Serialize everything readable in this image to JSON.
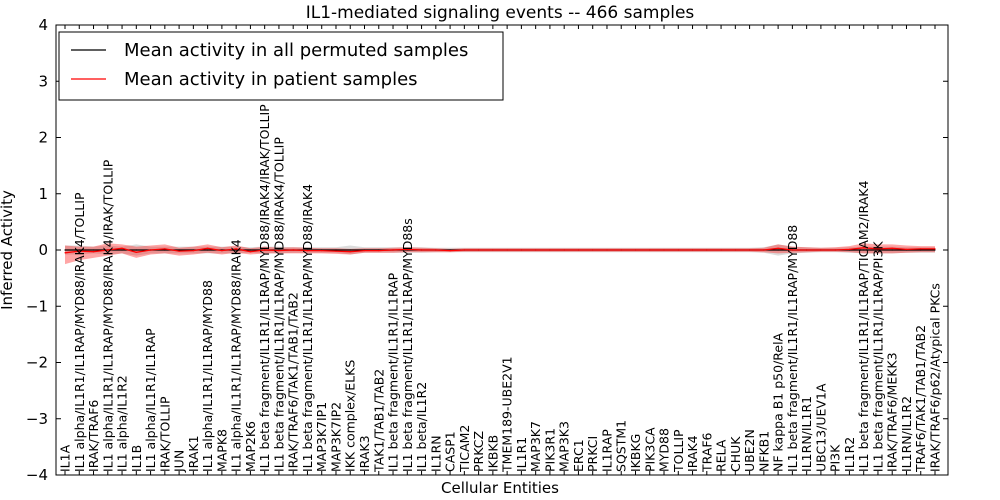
{
  "chart_data": {
    "type": "line",
    "title": "IL1-mediated signaling events -- 466 samples",
    "xlabel": "Cellular Entities",
    "ylabel": "Inferred Activity",
    "ylim": [
      -4,
      4
    ],
    "yticks": [
      -4,
      -3,
      -2,
      -1,
      0,
      1,
      2,
      3,
      4
    ],
    "ytick_labels": [
      "−4",
      "−3",
      "−2",
      "−1",
      "0",
      "1",
      "2",
      "3",
      "4"
    ],
    "legend_position": "top-left",
    "legend": [
      {
        "label": "Mean activity in all permuted samples",
        "color": "#000000"
      },
      {
        "label": "Mean activity in patient samples",
        "color": "#ff0000"
      }
    ],
    "categories": [
      "IL1A",
      "IL1 alpha/IL1R1/IL1RAP/MYD88/IRAK4/TOLLIP",
      "IRAK/TRAF6",
      "IL1 alpha/IL1R1/IL1RAP/MYD88/IRAK4/IRAK/TOLLIP",
      "IL1 alpha/IL1R2",
      "IL1B",
      "IL1 alpha/IL1R1/IL1RAP",
      "IRAK/TOLLIP",
      "JUN",
      "IRAK1",
      "IL1 alpha/IL1R1/IL1RAP/MYD88",
      "MAPK8",
      "IL1 alpha/IL1R1/IL1RAP/MYD88/IRAK4",
      "MAP2K6",
      "IL1 beta fragment/IL1R1/IL1RAP/MYD88/IRAK4/IRAK/TOLLIP",
      "IL1 beta fragment/IL1R1/IL1RAP/MYD88/IRAK4/TOLLIP",
      "IRAK/TRAF6/TAK1/TAB1/TAB2",
      "IL1 beta fragment/IL1R1/IL1RAP/MYD88/IRAK4",
      "MAP3K7IP1",
      "MAP3K7IP2",
      "IKK complex/ELKS",
      "IRAK3",
      "TAK1/TAB1/TAB2",
      "IL1 beta fragment/IL1R1/IL1RAP",
      "IL1 beta fragment/IL1R1/IL1RAP/MYD88s",
      "IL1 beta/IL1R2",
      "IL1RN",
      "CASP1",
      "TICAM2",
      "PRKCZ",
      "IKBKB",
      "TMEM189-UBE2V1",
      "IL1R1",
      "MAP3K7",
      "PIK3R1",
      "MAP3K3",
      "ERC1",
      "PRKCI",
      "IL1RAP",
      "SQSTM1",
      "IKBKG",
      "PIK3CA",
      "MYD88",
      "TOLLIP",
      "IRAK4",
      "TRAF6",
      "RELA",
      "CHUK",
      "UBE2N",
      "NFKB1",
      "NF kappa B1 p50/RelA",
      "IL1 beta fragment/IL1R1/IL1RAP/MYD88",
      "IL1RN/IL1R1",
      "UBC13/UEV1A",
      "PI3K",
      "IL1R2",
      "IL1 beta fragment/IL1R1/IL1RAP/TICAM2/IRAK4",
      "IL1 beta fragment/IL1R1/IL1RAP/PI3K",
      "IRAK/TRAF6/MEKK3",
      "IL1RN/IL1R2",
      "TRAF6/TAK1/TAB1/TAB2",
      "IRAK/TRAF6/p62/Atypical PKCs"
    ],
    "series": [
      {
        "name": "Mean activity in all permuted samples",
        "color": "#000000",
        "values": [
          0,
          0,
          0,
          0,
          0,
          0,
          0,
          0,
          0,
          0,
          0,
          0,
          0,
          0,
          0,
          0,
          0,
          0,
          0,
          0,
          0,
          0,
          0,
          0,
          0,
          0,
          0,
          0,
          0,
          0,
          0,
          0,
          0,
          0,
          0,
          0,
          0,
          0,
          0,
          0,
          0,
          0,
          0,
          0,
          0,
          0,
          0,
          0,
          0,
          0,
          0,
          0,
          0,
          0,
          0,
          0,
          0,
          0,
          0,
          0,
          0,
          0
        ],
        "band_lower": [
          -0.08,
          -0.08,
          -0.06,
          -0.08,
          -0.06,
          -0.1,
          -0.06,
          -0.06,
          -0.06,
          -0.06,
          -0.06,
          -0.06,
          -0.06,
          -0.05,
          -0.06,
          -0.06,
          -0.05,
          -0.05,
          -0.05,
          -0.05,
          -0.08,
          -0.05,
          -0.05,
          -0.05,
          -0.05,
          -0.05,
          -0.04,
          -0.04,
          -0.04,
          -0.04,
          -0.04,
          -0.04,
          -0.04,
          -0.04,
          -0.04,
          -0.04,
          -0.04,
          -0.04,
          -0.04,
          -0.04,
          -0.04,
          -0.04,
          -0.04,
          -0.04,
          -0.04,
          -0.04,
          -0.04,
          -0.04,
          -0.04,
          -0.05,
          -0.1,
          -0.06,
          -0.05,
          -0.04,
          -0.04,
          -0.05,
          -0.06,
          -0.06,
          -0.06,
          -0.05,
          -0.05,
          -0.05
        ],
        "band_upper": [
          0.08,
          0.08,
          0.06,
          0.08,
          0.06,
          0.1,
          0.06,
          0.06,
          0.06,
          0.06,
          0.06,
          0.06,
          0.06,
          0.05,
          0.06,
          0.06,
          0.05,
          0.05,
          0.05,
          0.05,
          0.08,
          0.05,
          0.05,
          0.05,
          0.05,
          0.05,
          0.04,
          0.04,
          0.04,
          0.04,
          0.04,
          0.04,
          0.04,
          0.04,
          0.04,
          0.04,
          0.04,
          0.04,
          0.04,
          0.04,
          0.04,
          0.04,
          0.04,
          0.04,
          0.04,
          0.04,
          0.04,
          0.04,
          0.04,
          0.05,
          0.1,
          0.06,
          0.05,
          0.04,
          0.04,
          0.05,
          0.06,
          0.06,
          0.06,
          0.05,
          0.05,
          0.05
        ]
      },
      {
        "name": "Mean activity in patient samples",
        "color": "#ff0000",
        "values": [
          -0.05,
          -0.02,
          -0.03,
          0.0,
          0.03,
          -0.04,
          0.0,
          0.02,
          -0.02,
          -0.01,
          0.03,
          -0.01,
          0.02,
          -0.03,
          0.0,
          -0.01,
          0.0,
          -0.01,
          -0.01,
          -0.02,
          -0.03,
          -0.01,
          -0.01,
          0.0,
          0.01,
          0.0,
          0.0,
          -0.01,
          0.0,
          0.0,
          0.0,
          0.0,
          0.0,
          0.0,
          0.0,
          0.0,
          0.0,
          0.0,
          0.0,
          0.0,
          0.0,
          0.0,
          0.0,
          0.0,
          0.0,
          0.0,
          0.0,
          0.0,
          0.0,
          0.0,
          0.03,
          0.0,
          0.0,
          0.0,
          0.0,
          0.01,
          0.04,
          0.02,
          0.03,
          0.01,
          0.02,
          0.02
        ],
        "band_lower": [
          -0.25,
          -0.18,
          -0.14,
          -0.1,
          -0.06,
          -0.14,
          -0.08,
          -0.06,
          -0.1,
          -0.08,
          -0.05,
          -0.08,
          -0.05,
          -0.08,
          -0.06,
          -0.06,
          -0.06,
          -0.06,
          -0.06,
          -0.07,
          -0.08,
          -0.05,
          -0.05,
          -0.05,
          -0.04,
          -0.04,
          -0.04,
          -0.04,
          -0.03,
          -0.03,
          -0.03,
          -0.03,
          -0.03,
          -0.03,
          -0.03,
          -0.03,
          -0.03,
          -0.03,
          -0.03,
          -0.03,
          -0.03,
          -0.03,
          -0.03,
          -0.03,
          -0.03,
          -0.03,
          -0.03,
          -0.03,
          -0.03,
          -0.04,
          -0.06,
          -0.05,
          -0.04,
          -0.03,
          -0.03,
          -0.04,
          -0.06,
          -0.06,
          -0.06,
          -0.05,
          -0.04,
          -0.04
        ],
        "band_upper": [
          0.08,
          0.06,
          0.06,
          0.12,
          0.1,
          0.06,
          0.08,
          0.1,
          0.04,
          0.06,
          0.1,
          0.05,
          0.08,
          0.03,
          0.06,
          0.04,
          0.05,
          0.04,
          0.03,
          0.03,
          0.02,
          0.03,
          0.03,
          0.04,
          0.05,
          0.04,
          0.03,
          0.02,
          0.03,
          0.03,
          0.03,
          0.03,
          0.03,
          0.03,
          0.03,
          0.03,
          0.03,
          0.03,
          0.03,
          0.03,
          0.03,
          0.03,
          0.03,
          0.03,
          0.03,
          0.03,
          0.03,
          0.03,
          0.03,
          0.04,
          0.1,
          0.06,
          0.05,
          0.04,
          0.05,
          0.07,
          0.12,
          0.1,
          0.1,
          0.08,
          0.07,
          0.07
        ]
      }
    ]
  }
}
